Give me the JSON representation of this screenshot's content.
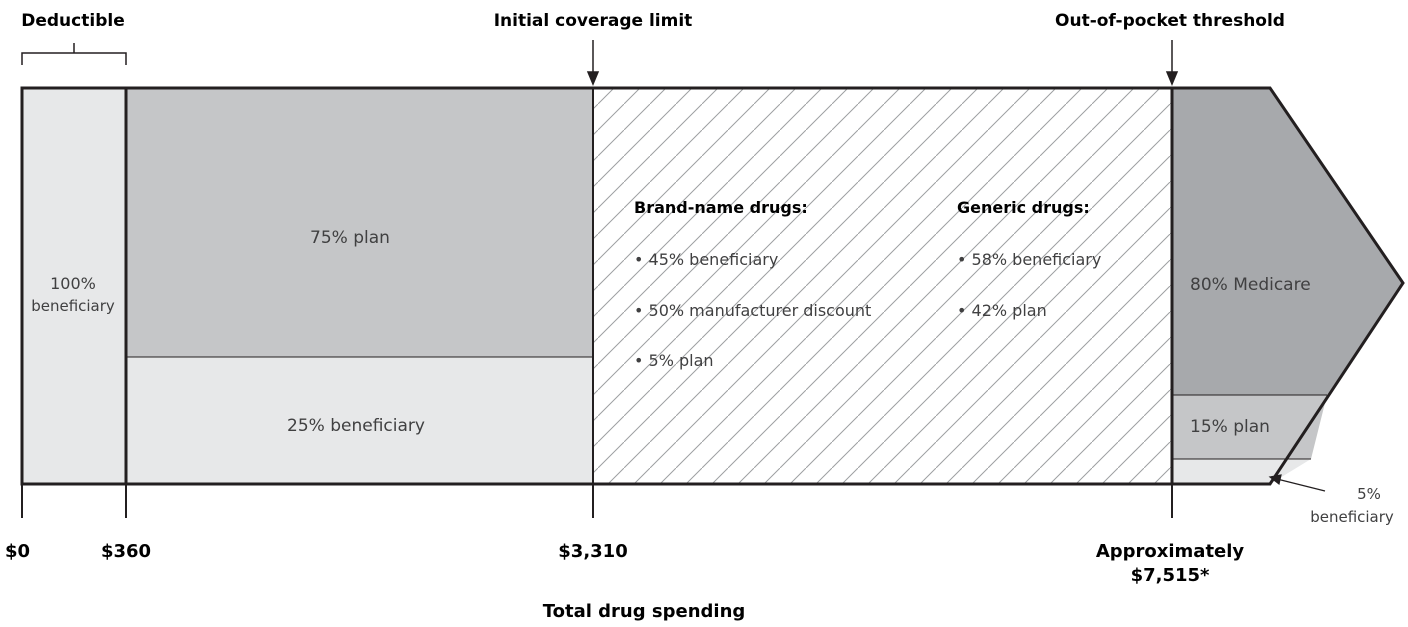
{
  "top_labels": {
    "deductible": "Deductible",
    "initial_coverage_limit": "Initial coverage limit",
    "out_of_pocket_threshold": "Out-of-pocket threshold"
  },
  "segments": {
    "deductible": {
      "line1": "100%",
      "line2": "beneficiary"
    },
    "initial": {
      "plan": "75% plan",
      "beneficiary": "25% beneficiary"
    },
    "gap": {
      "brand_heading": "Brand-name drugs:",
      "brand_items": [
        "• 45% beneficiary",
        "• 50% manufacturer discount",
        "• 5% plan"
      ],
      "generic_heading": "Generic drugs:",
      "generic_items": [
        "• 58% beneficiary",
        "• 42% plan"
      ]
    },
    "catastrophic": {
      "medicare": "80% Medicare",
      "plan": "15% plan",
      "beneficiary_line1": "5%",
      "beneficiary_line2": "beneficiary"
    }
  },
  "ticks": {
    "t0": "$0",
    "t1": "$360",
    "t2": "$3,310",
    "t3_line1": "Approximately",
    "t3_line2": "$7,515*"
  },
  "x_axis_title": "Total drug spending",
  "colors": {
    "light": "#e7e8e9",
    "mid": "#c5c6c8",
    "dark": "#a7a9ac",
    "stroke": "#231f20",
    "hatch": "#9d9fa2"
  }
}
